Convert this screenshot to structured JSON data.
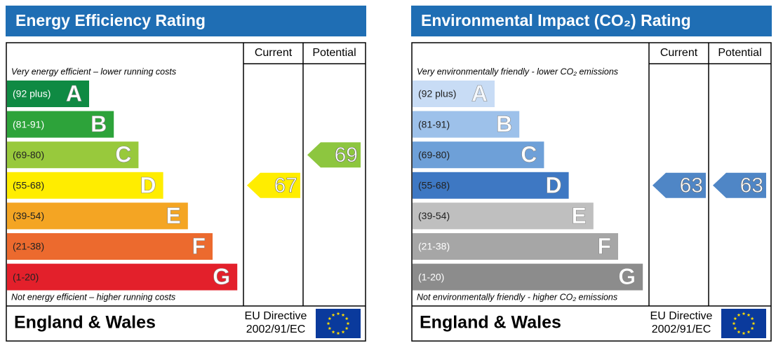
{
  "panels": [
    {
      "title": "Energy Efficiency Rating",
      "headers": [
        "Current",
        "Potential"
      ],
      "top_note": "Very energy efficient – lower running costs",
      "bottom_note": "Not energy efficient – higher running costs",
      "bands": [
        {
          "range": "(92 plus)",
          "letter": "A",
          "color": "#0f8a43",
          "text_color": "#ffffff",
          "letter_color": "#ffffff"
        },
        {
          "range": "(81-91)",
          "letter": "B",
          "color": "#2da33a",
          "text_color": "#ffffff",
          "letter_color": "#ffffff"
        },
        {
          "range": "(69-80)",
          "letter": "C",
          "color": "#98c93c",
          "text_color": "#222222",
          "letter_color": "#ffffff"
        },
        {
          "range": "(55-68)",
          "letter": "D",
          "color": "#ffed00",
          "text_color": "#222222",
          "letter_color": "#ffffff"
        },
        {
          "range": "(39-54)",
          "letter": "E",
          "color": "#f4a523",
          "text_color": "#222222",
          "letter_color": "#ffffff"
        },
        {
          "range": "(21-38)",
          "letter": "F",
          "color": "#ec6a2e",
          "text_color": "#222222",
          "letter_color": "#ffffff"
        },
        {
          "range": "(1-20)",
          "letter": "G",
          "color": "#e3202b",
          "text_color": "#222222",
          "letter_color": "#ffffff"
        }
      ],
      "current": {
        "value": 67,
        "color": "#ffed00"
      },
      "potential": {
        "value": 69,
        "color": "#8dc63f"
      },
      "footer": {
        "region": "England & Wales",
        "directive_line1": "EU Directive",
        "directive_line2": "2002/91/EC"
      }
    },
    {
      "title": "Environmental Impact (CO₂) Rating",
      "headers": [
        "Current",
        "Potential"
      ],
      "top_note": "Very environmentally friendly - lower CO₂ emissions",
      "bottom_note": "Not environmentally friendly - higher CO₂ emissions",
      "bands": [
        {
          "range": "(92 plus)",
          "letter": "A",
          "color": "#c8dcf5",
          "text_color": "#222222",
          "letter_color": "#f4f8fd"
        },
        {
          "range": "(81-91)",
          "letter": "B",
          "color": "#9dc1ea",
          "text_color": "#222222",
          "letter_color": "#ffffff"
        },
        {
          "range": "(69-80)",
          "letter": "C",
          "color": "#6ea0d8",
          "text_color": "#222222",
          "letter_color": "#ffffff"
        },
        {
          "range": "(55-68)",
          "letter": "D",
          "color": "#3e78c3",
          "text_color": "#222222",
          "letter_color": "#ffffff"
        },
        {
          "range": "(39-54)",
          "letter": "E",
          "color": "#bfbfbf",
          "text_color": "#222222",
          "letter_color": "#ffffff"
        },
        {
          "range": "(21-38)",
          "letter": "F",
          "color": "#a6a6a6",
          "text_color": "#ffffff",
          "letter_color": "#ffffff"
        },
        {
          "range": "(1-20)",
          "letter": "G",
          "color": "#8c8c8c",
          "text_color": "#ffffff",
          "letter_color": "#ffffff"
        }
      ],
      "current": {
        "value": 63,
        "color": "#4f86c6"
      },
      "potential": {
        "value": 63,
        "color": "#4f86c6"
      },
      "footer": {
        "region": "England & Wales",
        "directive_line1": "EU Directive",
        "directive_line2": "2002/91/EC"
      }
    }
  ]
}
